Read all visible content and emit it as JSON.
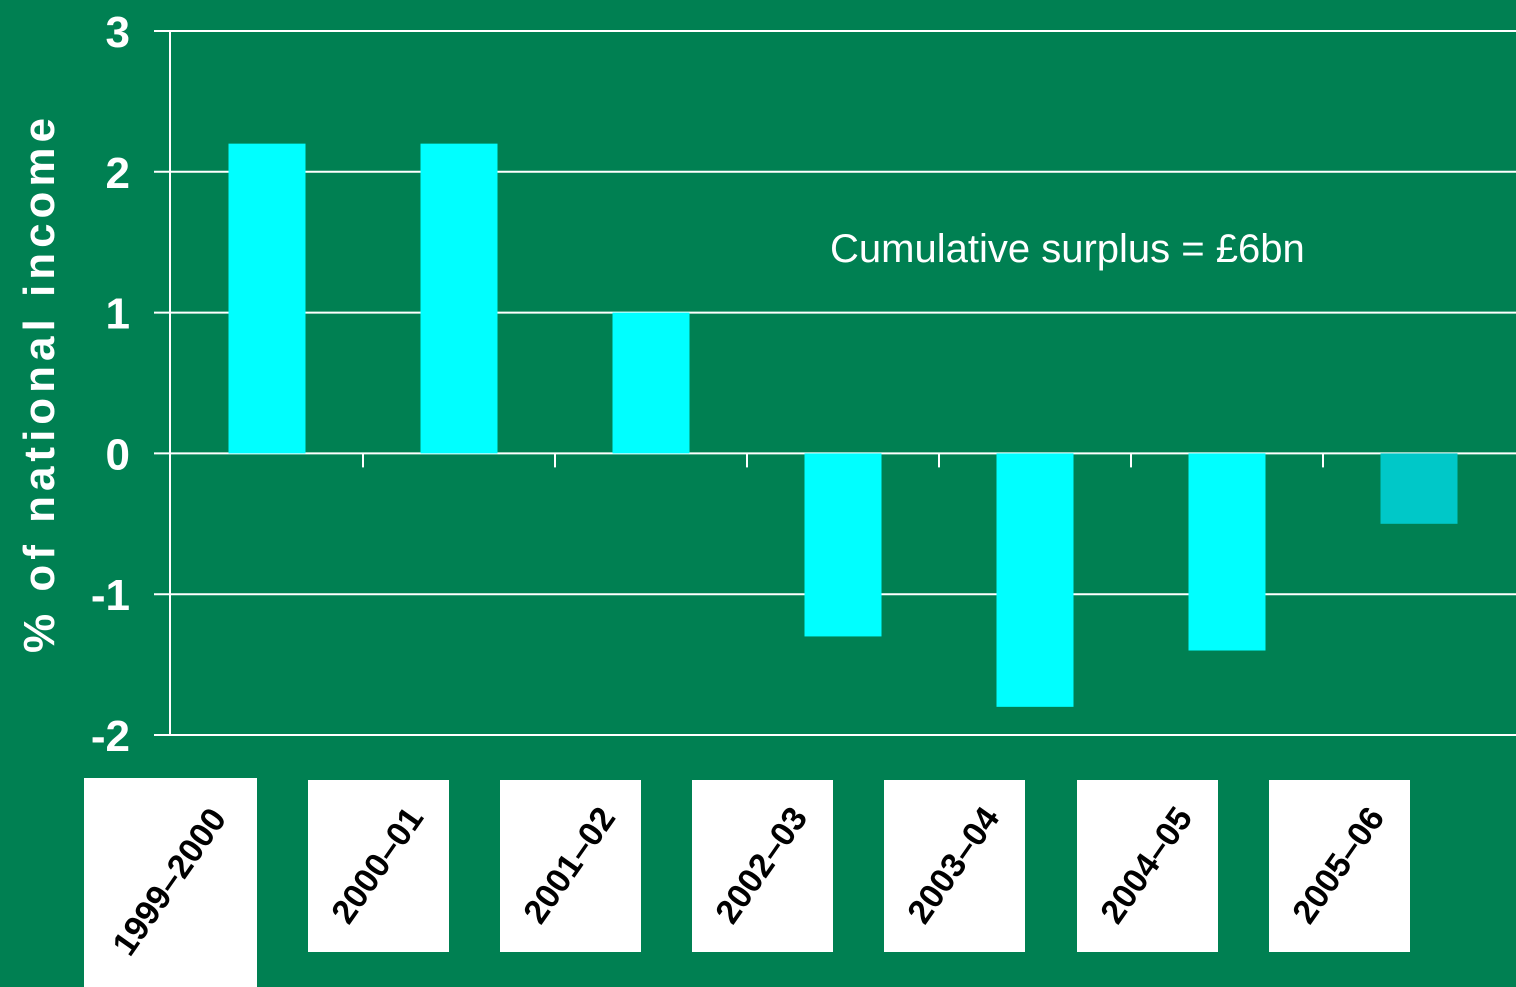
{
  "chart_data": {
    "type": "bar",
    "ylabel": "% of national income",
    "xlabel": "",
    "ylim": [
      -2,
      3
    ],
    "yticks": [
      "3",
      "2",
      "1",
      "0",
      "-1",
      "-2"
    ],
    "categories": [
      "1999–2000",
      "2000–01",
      "2001–02",
      "2002–03",
      "2003–04",
      "2004–05",
      "2005–06"
    ],
    "values": [
      2.2,
      2.2,
      1.0,
      -1.3,
      -1.8,
      -1.4,
      -0.5
    ],
    "annotation": "Cumulative surplus = £6bn",
    "grid": true,
    "colors": {
      "background": "#008052",
      "bar": "#00ffff",
      "bar_last": "#00c8c8",
      "grid": "#ffffff",
      "text": "#ffffff",
      "label_box": "#ffffff",
      "label_text": "#000000"
    }
  }
}
